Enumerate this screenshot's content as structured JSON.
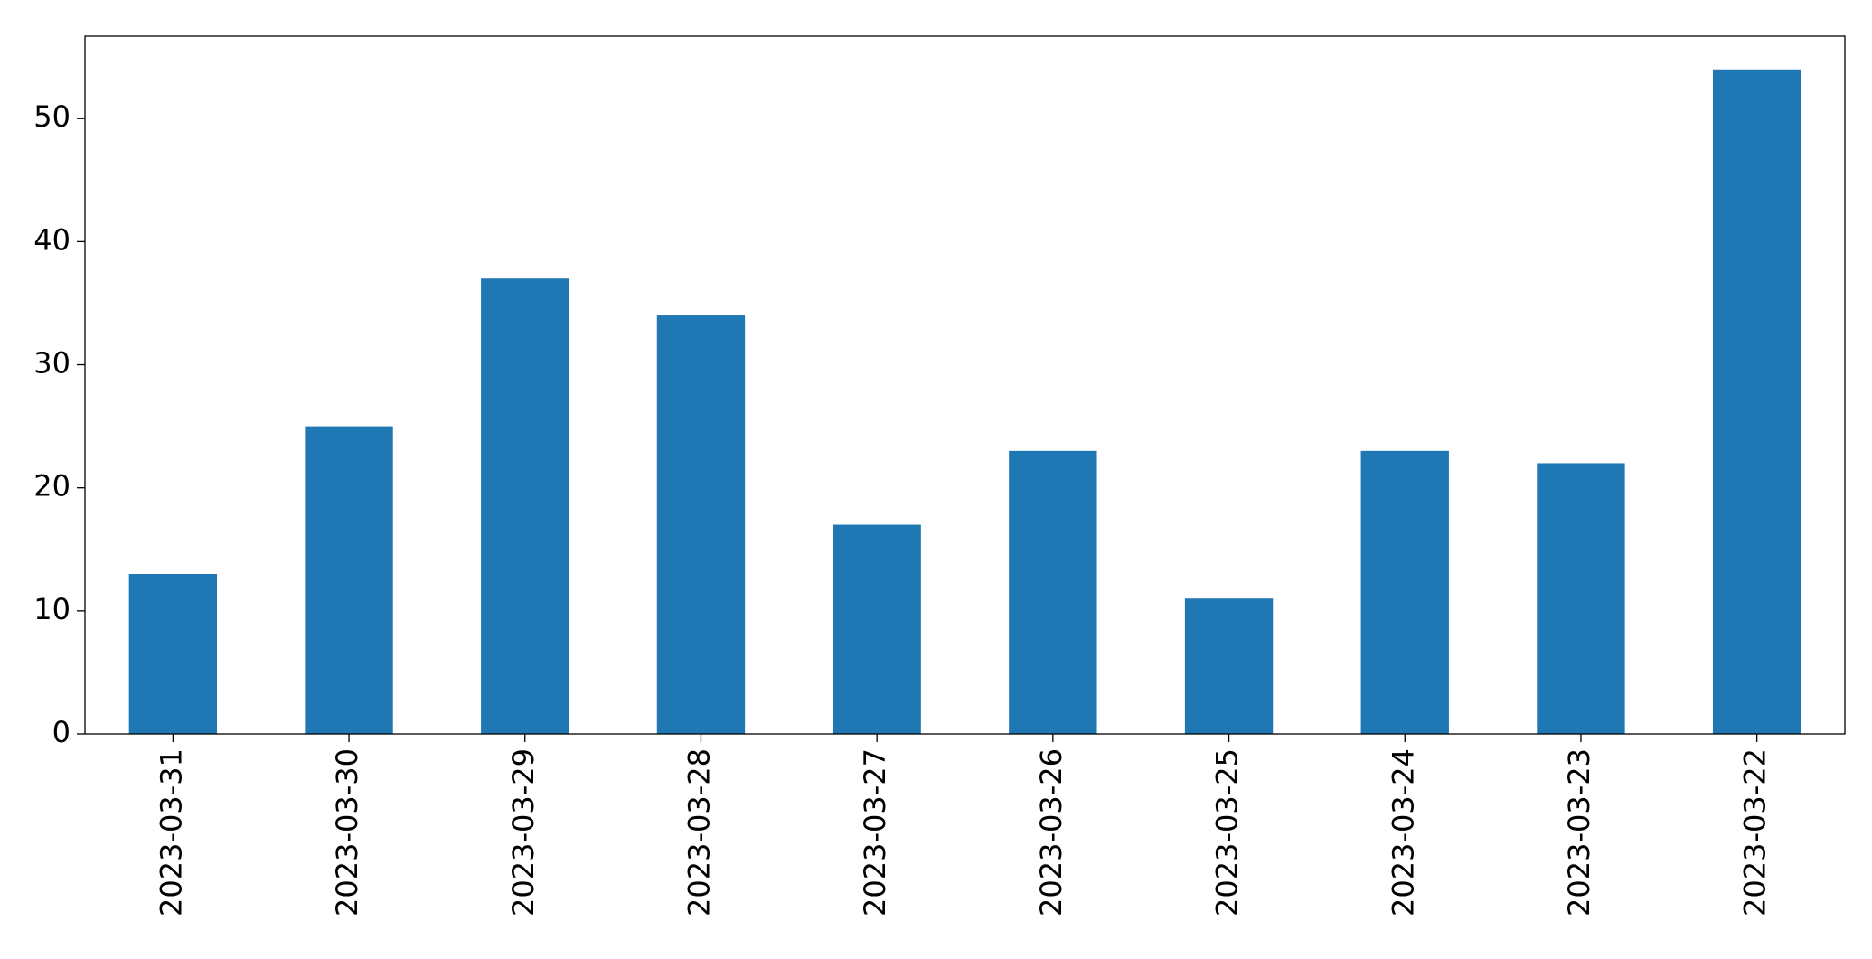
{
  "chart_data": {
    "type": "bar",
    "categories": [
      "2023-03-31",
      "2023-03-30",
      "2023-03-29",
      "2023-03-28",
      "2023-03-27",
      "2023-03-26",
      "2023-03-25",
      "2023-03-24",
      "2023-03-23",
      "2023-03-22"
    ],
    "values": [
      13,
      25,
      37,
      34,
      17,
      23,
      11,
      23,
      22,
      54
    ],
    "color": "#1f77b4",
    "ylim": [
      0,
      56.7
    ],
    "yticks": [
      0,
      10,
      20,
      30,
      40,
      50
    ],
    "grid": false
  }
}
